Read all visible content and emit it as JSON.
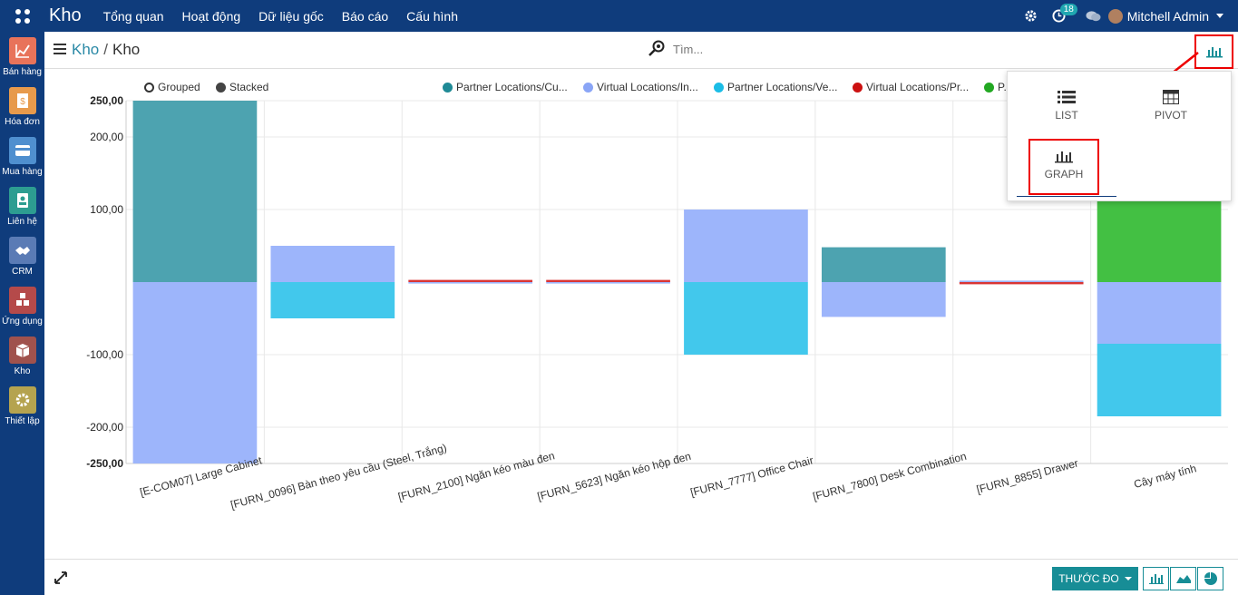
{
  "app": {
    "brand": "Kho",
    "menu": [
      "Tổng quan",
      "Hoạt động",
      "Dữ liệu gốc",
      "Báo cáo",
      "Cấu hình"
    ],
    "notification_count": "18",
    "user_name": "Mitchell Admin"
  },
  "sidebar": {
    "items": [
      {
        "label": "Bán hàng",
        "icon": "sales-chart-icon",
        "color": "#e8735a"
      },
      {
        "label": "Hóa đơn",
        "icon": "invoice-icon",
        "color": "#e79a4c"
      },
      {
        "label": "Mua hàng",
        "icon": "purchase-card-icon",
        "color": "#4f8fcf"
      },
      {
        "label": "Liên hệ",
        "icon": "contact-card-icon",
        "color": "#2d9d91"
      },
      {
        "label": "CRM",
        "icon": "handshake-icon",
        "color": "#5a7bb5"
      },
      {
        "label": "Ứng dụng",
        "icon": "apps-cubes-icon",
        "color": "#b54a4a"
      },
      {
        "label": "Kho",
        "icon": "inventory-box-icon",
        "color": "#a0524d"
      },
      {
        "label": "Thiết lập",
        "icon": "settings-gear-icon",
        "color": "#b5a34f"
      }
    ]
  },
  "breadcrumb": {
    "parent": "Kho",
    "current": "Kho",
    "separator": "/"
  },
  "search": {
    "placeholder": "Tìm..."
  },
  "legend_toggles": {
    "grouped": "Grouped",
    "stacked": "Stacked"
  },
  "view_switcher": {
    "list": "LIST",
    "pivot": "PIVOT",
    "graph": "GRAPH"
  },
  "bottom": {
    "measure_label": "THƯỚC ĐO"
  },
  "chart_data": {
    "type": "bar",
    "stacked": true,
    "categories": [
      "[E-COM07] Large Cabinet",
      "[FURN_0096] Bàn theo yêu cầu (Steel, Trắng)",
      "[FURN_2100] Ngăn kéo màu đen",
      "[FURN_5623] Ngăn kéo hộp đen",
      "[FURN_7777] Office Chair",
      "[FURN_7800] Desk Combination",
      "[FURN_8855] Drawer",
      "Cây máy tính"
    ],
    "series": [
      {
        "name": "Partner Locations/Cu...",
        "color": "#4da3b0",
        "values": [
          250,
          0,
          0,
          0,
          0,
          48,
          0,
          0
        ]
      },
      {
        "name": "Virtual Locations/In...",
        "color": "#9db5fb",
        "values": [
          -250,
          50,
          -2,
          -2,
          100,
          -48,
          2,
          -85
        ]
      },
      {
        "name": "Partner Locations/Ve...",
        "color": "#42c8ec",
        "values": [
          0,
          -50,
          0,
          0,
          -100,
          0,
          0,
          -100
        ]
      },
      {
        "name": "Virtual Locations/Pr...",
        "color": "#d93535",
        "values": [
          0,
          0,
          3,
          3,
          0,
          0,
          -3,
          0
        ]
      },
      {
        "name": "P...",
        "color": "#43c043",
        "values": [
          0,
          0,
          0,
          0,
          0,
          0,
          0,
          113
        ]
      }
    ],
    "yticks": [
      "250,00",
      "200,00",
      "100,00",
      "-100,00",
      "-200,00",
      "-250,00"
    ],
    "ytick_values": [
      250,
      200,
      100,
      -100,
      -200,
      -250
    ],
    "ylim": [
      -250,
      250
    ],
    "grid": true,
    "legend": "top"
  }
}
